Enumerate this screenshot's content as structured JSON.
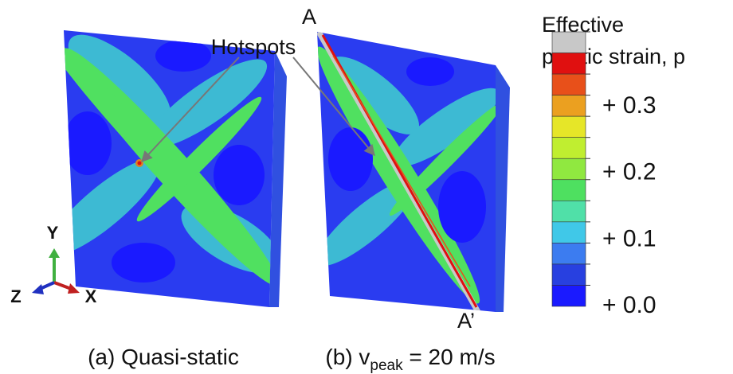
{
  "panels": [
    {
      "caption": "(a) Quasi-static"
    },
    {
      "caption_parts": [
        "(b) v",
        "peak",
        " = 20 m/s"
      ]
    }
  ],
  "annotation": "Hotspots",
  "section_labels": [
    "A",
    "A’"
  ],
  "triad": {
    "x": "X",
    "y": "Y",
    "z": "Z"
  },
  "colorbar": {
    "title": [
      "Effective",
      "plastic strain, p"
    ],
    "colors": [
      "#c8c8c8",
      "#e01010",
      "#e8501a",
      "#eba020",
      "#e6e628",
      "#c0ee30",
      "#90e840",
      "#4ee060",
      "#50e0a8",
      "#40c8e8",
      "#3c7cf0",
      "#2840e0",
      "#1a1aff"
    ],
    "tick_labels": [
      "+ 0.3",
      "+ 0.2",
      "+ 0.1",
      "+ 0.0"
    ]
  }
}
